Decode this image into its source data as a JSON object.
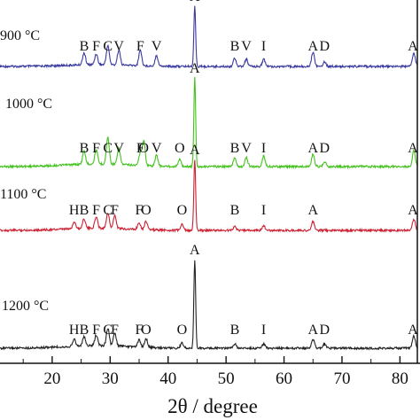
{
  "chart_data": {
    "type": "line",
    "xlabel": "2θ / degree",
    "ylabel": "",
    "xlim": [
      11,
      83
    ],
    "xticks": [
      20,
      30,
      40,
      50,
      60,
      70,
      80
    ],
    "grid": false,
    "series": [
      {
        "name": "900 °C",
        "color": "#3a3aa0",
        "peaks": [
          {
            "label": "B",
            "x": 25.5,
            "h": 0.2
          },
          {
            "label": "F",
            "x": 27.6,
            "h": 0.18
          },
          {
            "label": "C",
            "x": 29.6,
            "h": 0.32
          },
          {
            "label": "V",
            "x": 31.5,
            "h": 0.25
          },
          {
            "label": "F",
            "x": 35.2,
            "h": 0.26
          },
          {
            "label": "V",
            "x": 38.0,
            "h": 0.18
          },
          {
            "label": "A",
            "x": 44.6,
            "h": 1.0
          },
          {
            "label": "B",
            "x": 51.5,
            "h": 0.14
          },
          {
            "label": "V",
            "x": 53.5,
            "h": 0.12
          },
          {
            "label": "I",
            "x": 56.5,
            "h": 0.12
          },
          {
            "label": "A",
            "x": 65.0,
            "h": 0.24
          },
          {
            "label": "D",
            "x": 67.0,
            "h": 0.08
          },
          {
            "label": "A",
            "x": 82.4,
            "h": 0.22
          }
        ]
      },
      {
        "name": "1000 °C",
        "color": "#44c21f",
        "peaks": [
          {
            "label": "B",
            "x": 25.5,
            "h": 0.15
          },
          {
            "label": "F",
            "x": 27.6,
            "h": 0.16
          },
          {
            "label": "C",
            "x": 29.6,
            "h": 0.3
          },
          {
            "label": "V",
            "x": 31.5,
            "h": 0.18
          },
          {
            "label": "F",
            "x": 35.2,
            "h": 0.14
          },
          {
            "label": "O",
            "x": 35.8,
            "h": 0.28
          },
          {
            "label": "V",
            "x": 38.0,
            "h": 0.12
          },
          {
            "label": "O",
            "x": 42.0,
            "h": 0.08
          },
          {
            "label": "A",
            "x": 44.6,
            "h": 1.0
          },
          {
            "label": "B",
            "x": 51.5,
            "h": 0.1
          },
          {
            "label": "V",
            "x": 53.5,
            "h": 0.1
          },
          {
            "label": "I",
            "x": 56.5,
            "h": 0.12
          },
          {
            "label": "A",
            "x": 65.0,
            "h": 0.14
          },
          {
            "label": "D",
            "x": 67.0,
            "h": 0.06
          },
          {
            "label": "A",
            "x": 82.4,
            "h": 0.18
          }
        ]
      },
      {
        "name": "1100 °C",
        "color": "#cc2233",
        "peaks": [
          {
            "label": "H",
            "x": 23.8,
            "h": 0.1
          },
          {
            "label": "B",
            "x": 25.5,
            "h": 0.14
          },
          {
            "label": "F",
            "x": 27.6,
            "h": 0.16
          },
          {
            "label": "C",
            "x": 29.6,
            "h": 0.22
          },
          {
            "label": "F",
            "x": 30.8,
            "h": 0.18
          },
          {
            "label": "F",
            "x": 35.0,
            "h": 0.1
          },
          {
            "label": "O",
            "x": 36.2,
            "h": 0.12
          },
          {
            "label": "O",
            "x": 42.4,
            "h": 0.08
          },
          {
            "label": "A",
            "x": 44.6,
            "h": 1.0
          },
          {
            "label": "B",
            "x": 51.5,
            "h": 0.06
          },
          {
            "label": "I",
            "x": 56.5,
            "h": 0.06
          },
          {
            "label": "A",
            "x": 65.0,
            "h": 0.12
          },
          {
            "label": "A",
            "x": 82.4,
            "h": 0.16
          }
        ]
      },
      {
        "name": "1200 °C",
        "color": "#222222",
        "peaks": [
          {
            "label": "H",
            "x": 23.8,
            "h": 0.08
          },
          {
            "label": "B",
            "x": 25.5,
            "h": 0.1
          },
          {
            "label": "F",
            "x": 27.6,
            "h": 0.12
          },
          {
            "label": "C",
            "x": 29.6,
            "h": 0.2
          },
          {
            "label": "F",
            "x": 30.8,
            "h": 0.14
          },
          {
            "label": "F",
            "x": 35.0,
            "h": 0.08
          },
          {
            "label": "O",
            "x": 36.2,
            "h": 0.1
          },
          {
            "label": "O",
            "x": 42.4,
            "h": 0.06
          },
          {
            "label": "A",
            "x": 44.6,
            "h": 1.0
          },
          {
            "label": "B",
            "x": 51.5,
            "h": 0.05
          },
          {
            "label": "I",
            "x": 56.5,
            "h": 0.05
          },
          {
            "label": "A",
            "x": 65.0,
            "h": 0.1
          },
          {
            "label": "D",
            "x": 67.0,
            "h": 0.05
          },
          {
            "label": "A",
            "x": 82.4,
            "h": 0.14
          }
        ]
      }
    ]
  }
}
